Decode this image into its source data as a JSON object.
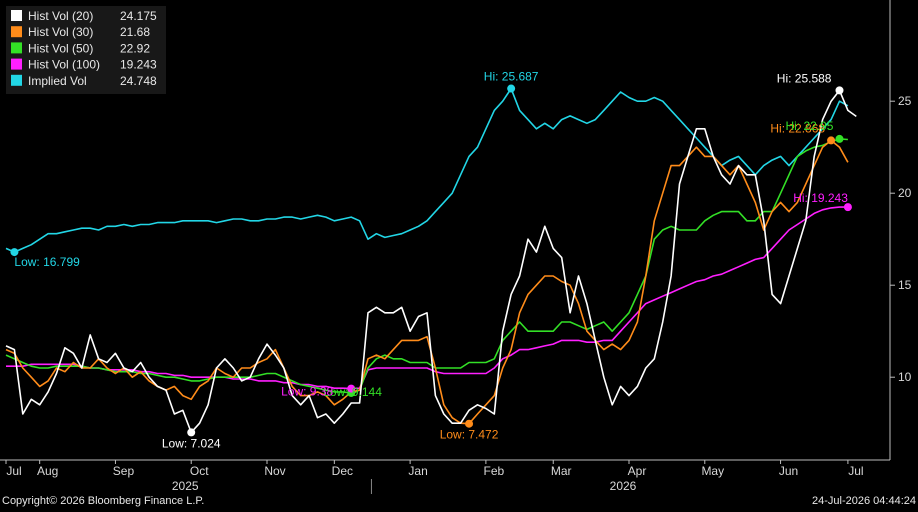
{
  "chart_data": {
    "type": "line",
    "ylim": [
      5.5,
      30.5
    ],
    "y_ticks": [
      10,
      15,
      20,
      25
    ],
    "x_tick_labels": [
      "Jul",
      "Aug",
      "Sep",
      "Oct",
      "Nov",
      "Dec",
      "Jan",
      "Feb",
      "Mar",
      "Apr",
      "May",
      "Jun",
      "Jul"
    ],
    "x_tick_weeks": [
      0,
      4,
      13,
      22,
      31,
      39,
      48,
      57,
      65,
      74,
      83,
      92,
      100
    ],
    "year_labels": [
      {
        "label": "2025",
        "week": 22
      },
      {
        "label": "2026",
        "week": 74
      }
    ],
    "year_divider_week": 44,
    "grid": false,
    "legend_position": "top-left",
    "series": [
      {
        "name": "Hist Vol (20)",
        "last": "24.175",
        "color": "#ffffff",
        "values": [
          11.7,
          11.5,
          8.0,
          8.8,
          8.5,
          9.2,
          10.2,
          11.6,
          11.3,
          10.5,
          12.3,
          11.0,
          10.8,
          11.3,
          10.5,
          10.3,
          10.8,
          10.0,
          9.5,
          9.3,
          8.0,
          8.2,
          7.0,
          7.5,
          8.5,
          10.5,
          11.0,
          10.5,
          9.8,
          10.0,
          11.0,
          11.8,
          11.2,
          10.5,
          9.0,
          8.5,
          9.0,
          7.8,
          8.0,
          7.5,
          8.0,
          8.6,
          8.6,
          13.5,
          13.8,
          13.5,
          13.5,
          13.8,
          12.5,
          13.3,
          13.5,
          9.0,
          8.0,
          7.5,
          7.5,
          8.2,
          8.5,
          8.3,
          8.0,
          12.5,
          14.5,
          15.5,
          17.5,
          16.8,
          18.2,
          17.0,
          16.5,
          13.5,
          15.5,
          14.0,
          12.0,
          10.0,
          8.5,
          9.5,
          9.0,
          9.5,
          10.5,
          11.0,
          13.0,
          15.5,
          20.5,
          22.0,
          23.5,
          23.5,
          22.0,
          21.0,
          20.5,
          21.5,
          21.0,
          21.0,
          18.5,
          14.5,
          14.0,
          15.5,
          17.0,
          18.5,
          22.0,
          24.0,
          25.0,
          25.588,
          24.5,
          24.175
        ]
      },
      {
        "name": "Hist Vol (30)",
        "last": "21.68",
        "color": "#ff8c1a",
        "values": [
          11.5,
          11.3,
          10.5,
          10.0,
          9.5,
          9.8,
          10.5,
          10.3,
          10.8,
          10.5,
          10.5,
          11.0,
          10.5,
          10.2,
          10.5,
          10.0,
          10.3,
          9.8,
          9.5,
          9.3,
          9.5,
          9.0,
          8.8,
          9.5,
          9.8,
          10.5,
          10.2,
          10.0,
          10.5,
          10.5,
          10.8,
          11.0,
          11.5,
          10.5,
          9.5,
          9.0,
          9.0,
          9.2,
          9.0,
          8.5,
          8.8,
          9.2,
          9.3,
          11.0,
          11.2,
          11.0,
          11.5,
          12.0,
          12.0,
          12.0,
          12.2,
          10.5,
          8.5,
          7.8,
          7.5,
          7.472,
          8.0,
          8.5,
          9.0,
          10.5,
          11.5,
          13.5,
          14.5,
          15.0,
          15.5,
          15.5,
          15.2,
          15.0,
          14.0,
          12.5,
          12.0,
          11.5,
          11.8,
          11.5,
          12.0,
          13.0,
          15.5,
          18.5,
          20.0,
          21.5,
          21.5,
          22.0,
          22.5,
          22.0,
          22.0,
          21.5,
          21.0,
          21.5,
          20.5,
          19.5,
          18.0,
          19.0,
          19.5,
          19.0,
          19.5,
          20.5,
          21.5,
          22.5,
          22.868,
          22.5,
          21.68
        ]
      },
      {
        "name": "Hist Vol (50)",
        "last": "22.92",
        "color": "#33e026",
        "values": [
          11.2,
          11.0,
          10.8,
          10.6,
          10.5,
          10.5,
          10.6,
          10.6,
          10.6,
          10.6,
          10.5,
          10.5,
          10.4,
          10.3,
          10.3,
          10.3,
          10.2,
          10.2,
          10.1,
          10.0,
          10.0,
          9.9,
          9.8,
          9.8,
          9.9,
          10.0,
          10.0,
          10.0,
          10.0,
          10.0,
          10.1,
          10.2,
          10.2,
          10.0,
          9.8,
          9.6,
          9.5,
          9.4,
          9.3,
          9.2,
          9.2,
          9.144,
          9.3,
          10.5,
          11.0,
          11.2,
          11.0,
          11.0,
          10.8,
          10.8,
          10.8,
          10.5,
          10.5,
          10.5,
          10.5,
          10.8,
          10.8,
          10.8,
          11.0,
          12.0,
          12.5,
          13.0,
          12.5,
          12.5,
          12.5,
          12.5,
          13.0,
          13.0,
          12.8,
          12.6,
          12.8,
          13.0,
          12.5,
          13.0,
          13.5,
          14.5,
          15.5,
          17.5,
          18.0,
          18.2,
          18.0,
          18.0,
          18.0,
          18.5,
          18.8,
          19.0,
          19.0,
          19.0,
          18.5,
          18.5,
          19.0,
          19.0,
          20.0,
          21.0,
          22.0,
          22.3,
          22.5,
          22.6,
          22.8,
          22.95,
          22.92
        ]
      },
      {
        "name": "Hist Vol (100)",
        "last": "19.243",
        "color": "#ff1fff",
        "values": [
          10.6,
          10.6,
          10.6,
          10.7,
          10.7,
          10.7,
          10.7,
          10.7,
          10.7,
          10.6,
          10.5,
          10.5,
          10.4,
          10.4,
          10.4,
          10.4,
          10.3,
          10.3,
          10.2,
          10.2,
          10.1,
          10.1,
          10.0,
          10.0,
          10.0,
          10.0,
          10.0,
          9.9,
          9.9,
          9.9,
          9.8,
          9.8,
          9.8,
          9.7,
          9.7,
          9.6,
          9.6,
          9.5,
          9.5,
          9.4,
          9.4,
          9.38,
          9.4,
          10.4,
          10.5,
          10.5,
          10.5,
          10.5,
          10.5,
          10.5,
          10.5,
          10.3,
          10.2,
          10.2,
          10.2,
          10.2,
          10.2,
          10.2,
          10.5,
          11.0,
          11.2,
          11.5,
          11.5,
          11.6,
          11.7,
          11.8,
          12.0,
          12.0,
          12.0,
          11.9,
          11.9,
          12.0,
          12.0,
          12.5,
          13.0,
          13.5,
          14.0,
          14.2,
          14.4,
          14.6,
          14.8,
          15.0,
          15.2,
          15.3,
          15.5,
          15.6,
          15.8,
          16.0,
          16.2,
          16.4,
          16.5,
          17.0,
          17.5,
          18.0,
          18.3,
          18.6,
          18.9,
          19.1,
          19.2,
          19.243,
          19.243
        ]
      },
      {
        "name": "Implied Vol",
        "last": "24.748",
        "color": "#22d6e6",
        "values": [
          17.0,
          16.799,
          17.0,
          17.2,
          17.5,
          17.8,
          17.8,
          17.9,
          18.0,
          18.1,
          18.1,
          18.0,
          18.2,
          18.2,
          18.3,
          18.2,
          18.3,
          18.3,
          18.4,
          18.4,
          18.4,
          18.5,
          18.5,
          18.5,
          18.5,
          18.4,
          18.5,
          18.6,
          18.6,
          18.5,
          18.5,
          18.6,
          18.6,
          18.7,
          18.7,
          18.6,
          18.7,
          18.8,
          18.7,
          18.5,
          18.6,
          18.7,
          18.5,
          17.5,
          17.8,
          17.6,
          17.7,
          17.8,
          18.0,
          18.2,
          18.5,
          19.0,
          19.5,
          20.0,
          21.0,
          22.0,
          22.5,
          23.5,
          24.5,
          25.0,
          25.687,
          24.5,
          24.0,
          23.5,
          23.8,
          23.5,
          24.0,
          24.2,
          24.0,
          23.8,
          24.0,
          24.5,
          25.0,
          25.5,
          25.2,
          25.0,
          25.0,
          25.2,
          25.0,
          24.5,
          24.0,
          23.5,
          23.0,
          22.5,
          22.0,
          21.5,
          21.8,
          22.0,
          21.5,
          21.0,
          21.5,
          21.8,
          22.0,
          21.5,
          22.0,
          22.5,
          23.0,
          23.5,
          24.0,
          25.0,
          24.748
        ]
      }
    ],
    "annotations": [
      {
        "text": "Hi: 25.687",
        "series": 4,
        "kind": "hi"
      },
      {
        "text": "Low: 16.799",
        "series": 4,
        "kind": "low"
      },
      {
        "text": "Hi: 25.588",
        "series": 0,
        "kind": "hi"
      },
      {
        "text": "Low: 7.024",
        "series": 0,
        "kind": "low"
      },
      {
        "text": "Hi: 22.868",
        "series": 1,
        "kind": "hi"
      },
      {
        "text": "Low: 7.472",
        "series": 1,
        "kind": "low"
      },
      {
        "text": "Hi: 22.95",
        "series": 2,
        "kind": "hi"
      },
      {
        "text": "Low: 9.144",
        "series": 2,
        "kind": "low"
      },
      {
        "text": "Hi: 19.243",
        "series": 3,
        "kind": "hi"
      },
      {
        "text": "Low: 9.38",
        "series": 3,
        "kind": "low"
      }
    ]
  },
  "footer": {
    "copyright": "Copyright© 2026 Bloomberg Finance L.P.",
    "timestamp": "24-Jul-2026 04:44:24"
  }
}
